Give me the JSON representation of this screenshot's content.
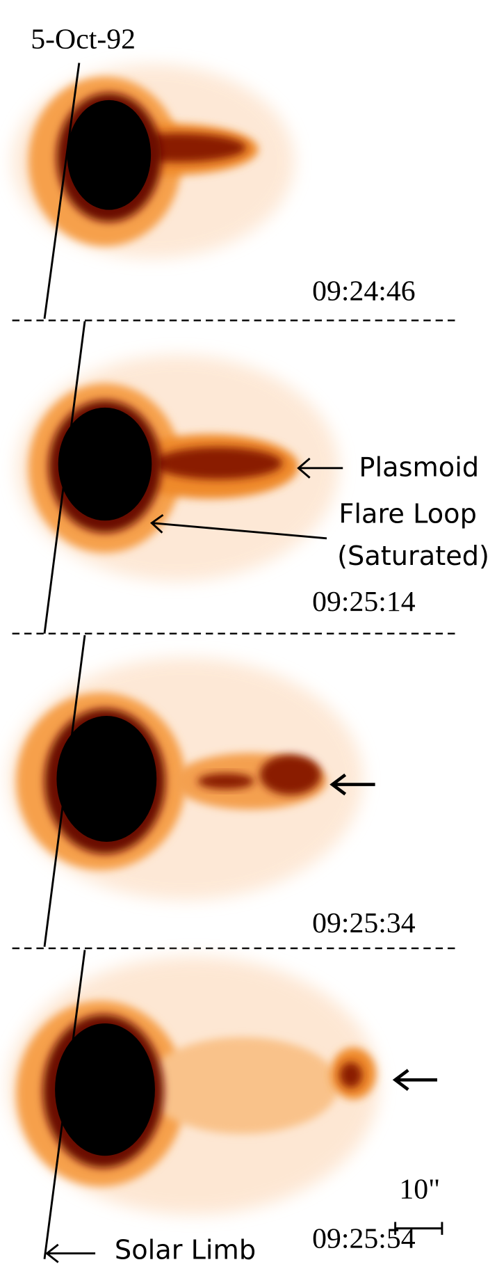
{
  "title": "5-Oct-92",
  "panels": [
    {
      "time": "09:24:46"
    },
    {
      "time": "09:25:14"
    },
    {
      "time": "09:25:34"
    },
    {
      "time": "09:25:54"
    }
  ],
  "annotations": {
    "plasmoid": "Plasmoid",
    "flare_loop": "Flare Loop",
    "saturated": "(Saturated)",
    "scale": "10\"",
    "solar_limb": "Solar Limb"
  }
}
